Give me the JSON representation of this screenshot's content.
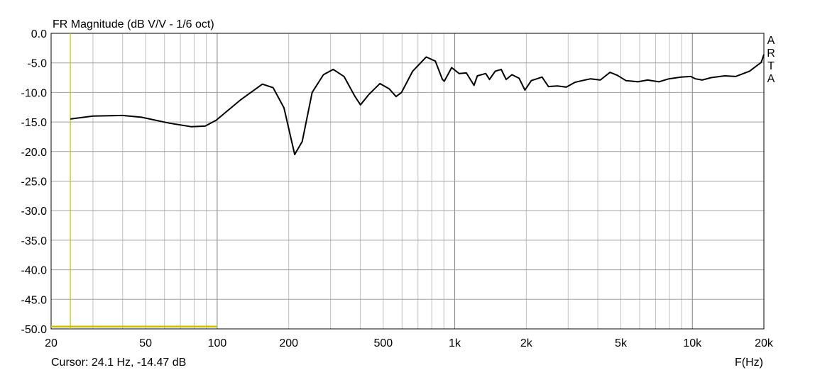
{
  "chart_data": {
    "type": "line",
    "title": "FR Magnitude (dB V/V - 1/6 oct)",
    "xlabel": "F(Hz)",
    "ylabel": "",
    "x_scale": "log",
    "xlim": [
      20,
      20000
    ],
    "ylim": [
      -50,
      0
    ],
    "grid": true,
    "x_ticks": [
      20,
      50,
      100,
      200,
      500,
      1000,
      2000,
      5000,
      10000,
      20000
    ],
    "x_tick_labels": [
      "20",
      "50",
      "100",
      "200",
      "500",
      "1k",
      "2k",
      "5k",
      "10k",
      "20k"
    ],
    "y_ticks": [
      0,
      -5,
      -10,
      -15,
      -20,
      -25,
      -30,
      -35,
      -40,
      -45,
      -50
    ],
    "y_tick_labels": [
      "0.0",
      "-5.0",
      "-10.0",
      "-15.0",
      "-20.0",
      "-25.0",
      "-30.0",
      "-35.0",
      "-40.0",
      "-45.0",
      "-50.0"
    ],
    "series": [
      {
        "color": "#000000",
        "x": [
          24.1,
          30,
          40,
          48,
          63,
          78,
          89,
          99,
          126,
          155,
          172,
          191,
          212,
          228,
          251,
          280,
          308,
          342,
          379,
          401,
          436,
          484,
          530,
          566,
          597,
          665,
          758,
          828,
          887,
          903,
          970,
          1043,
          1119,
          1205,
          1245,
          1350,
          1400,
          1480,
          1568,
          1645,
          1740,
          1865,
          1973,
          2100,
          2250,
          2330,
          2478,
          2700,
          2950,
          3200,
          3440,
          3730,
          4100,
          4500,
          4830,
          5250,
          5900,
          6480,
          7230,
          7960,
          8960,
          9840,
          10300,
          11000,
          12000,
          13700,
          15200,
          17400,
          19500,
          20000
        ],
        "y": [
          -14.5,
          -14.0,
          -13.9,
          -14.2,
          -15.2,
          -15.8,
          -15.7,
          -14.7,
          -11.2,
          -8.6,
          -9.2,
          -12.6,
          -20.5,
          -18.3,
          -10.0,
          -7.0,
          -6.1,
          -7.3,
          -10.6,
          -12.1,
          -10.3,
          -8.5,
          -9.4,
          -10.7,
          -10.0,
          -6.4,
          -4.0,
          -4.7,
          -7.8,
          -8.1,
          -5.8,
          -6.8,
          -6.7,
          -8.8,
          -7.2,
          -6.8,
          -7.8,
          -6.4,
          -6.1,
          -7.8,
          -7.0,
          -7.6,
          -9.6,
          -8.0,
          -7.6,
          -7.4,
          -9.0,
          -8.9,
          -9.1,
          -8.3,
          -8.0,
          -7.7,
          -7.9,
          -6.6,
          -7.1,
          -8.0,
          -8.2,
          -7.9,
          -8.2,
          -7.7,
          -7.4,
          -7.3,
          -7.7,
          -7.9,
          -7.5,
          -7.2,
          -7.3,
          -6.4,
          -4.9,
          -3.6
        ]
      },
      {
        "color": "#c8c000",
        "x": [
          20,
          100
        ],
        "y": [
          -49.6,
          -49.6
        ]
      }
    ],
    "cursor": {
      "x": 24.1,
      "color": "#c8c000"
    },
    "cursor_readout": "Cursor: 24.1 Hz, -14.47 dB",
    "watermark": "ARTA"
  }
}
